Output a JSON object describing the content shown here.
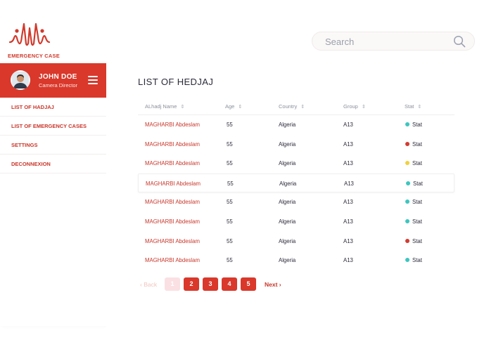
{
  "app": {
    "logo_text": "EMERGENCY CASE",
    "accent_color": "#d9382b"
  },
  "search": {
    "placeholder": "Search",
    "value": "",
    "icon": "search-icon"
  },
  "profile": {
    "name": "JOHN DOE",
    "role": "Camera Director",
    "menu_icon": "hamburger-icon"
  },
  "nav": {
    "items": [
      {
        "label": "LIST OF HADJAJ"
      },
      {
        "label": "LIST OF EMERGENCY CASES"
      },
      {
        "label": "SETTINGS"
      },
      {
        "label": "DECONNEXION"
      }
    ]
  },
  "page": {
    "title": "LIST OF HEDJAJ"
  },
  "table": {
    "columns": [
      {
        "label": "ALhadj Name"
      },
      {
        "label": "Age"
      },
      {
        "label": "Country"
      },
      {
        "label": "Group"
      },
      {
        "label": "Stat"
      }
    ],
    "sort_glyph": "⇕",
    "rows": [
      {
        "name": "MAGHARBI Abdeslam",
        "age": "55",
        "country": "Algeria",
        "group": "A13",
        "stat": "Stat",
        "status_color": "#3cc6c0"
      },
      {
        "name": "MAGHARBI Abdeslam",
        "age": "55",
        "country": "Algeria",
        "group": "A13",
        "stat": "Stat",
        "status_color": "#d33b30"
      },
      {
        "name": "MAGHARBI Abdeslam",
        "age": "55",
        "country": "Algeria",
        "group": "A13",
        "stat": "Stat",
        "status_color": "#f1d13c"
      },
      {
        "name": "MAGHARBI Abdeslam",
        "age": "55",
        "country": "Algeria",
        "group": "A13",
        "stat": "Stat",
        "status_color": "#3cc6c0"
      },
      {
        "name": "MAGHARBI Abdeslam",
        "age": "55",
        "country": "Algeria",
        "group": "A13",
        "stat": "Stat",
        "status_color": "#3cc6c0"
      },
      {
        "name": "MAGHARBI Abdeslam",
        "age": "55",
        "country": "Algeria",
        "group": "A13",
        "stat": "Stat",
        "status_color": "#3cc6c0"
      },
      {
        "name": "MAGHARBI Abdeslam",
        "age": "55",
        "country": "Algeria",
        "group": "A13",
        "stat": "Stat",
        "status_color": "#d33b30"
      },
      {
        "name": "MAGHARBI Abdeslam",
        "age": "55",
        "country": "Algeria",
        "group": "A13",
        "stat": "Stat",
        "status_color": "#3cc6c0"
      }
    ]
  },
  "pagination": {
    "back_label": "‹ Back",
    "next_label": "Next ›",
    "pages": [
      "1",
      "2",
      "3",
      "4",
      "5"
    ],
    "current": "1"
  }
}
